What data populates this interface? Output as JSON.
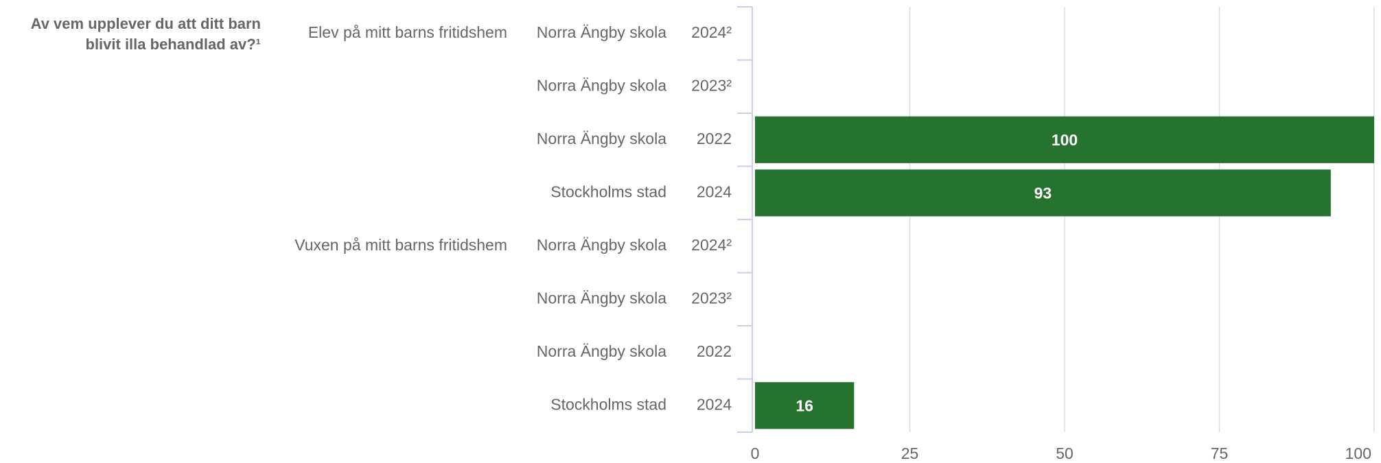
{
  "chart_data": {
    "type": "bar",
    "orientation": "horizontal",
    "title": "Av vem upplever du att ditt barn blivit illa behandlad av?¹",
    "groups": [
      "Elev på mitt barns fritidshem",
      null,
      null,
      null,
      "Vuxen på mitt barns fritidshem",
      null,
      null,
      null
    ],
    "schools": [
      "Norra Ängby skola",
      "Norra Ängby skola",
      "Norra Ängby skola",
      "Stockholms stad",
      "Norra Ängby skola",
      "Norra Ängby skola",
      "Norra Ängby skola",
      "Stockholms stad"
    ],
    "categories": [
      "2024²",
      "2023²",
      "2022",
      "2024",
      "2024²",
      "2023²",
      "2022",
      "2024"
    ],
    "values": [
      null,
      null,
      100,
      93,
      null,
      null,
      null,
      16
    ],
    "color": "#267330",
    "xlim": [
      0,
      100
    ],
    "xticks": [
      0,
      25,
      50,
      75,
      100
    ],
    "grid": true
  }
}
